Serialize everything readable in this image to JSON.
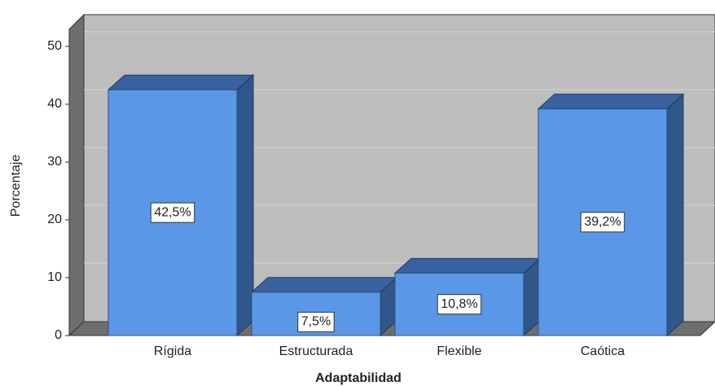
{
  "chart_data": {
    "type": "bar",
    "categories": [
      "Rígida",
      "Estructurada",
      "Flexible",
      "Caótica"
    ],
    "values": [
      42.5,
      7.5,
      10.8,
      39.2
    ],
    "value_labels": [
      "42,5%",
      "7,5%",
      "10,8%",
      "39,2%"
    ],
    "color": "#5a97e6",
    "xlabel": "Adaptabilidad",
    "ylabel": "Porcentaje",
    "ylim": [
      0,
      50
    ],
    "yticks": [
      0,
      10,
      20,
      30,
      40,
      50
    ],
    "grid": true
  }
}
